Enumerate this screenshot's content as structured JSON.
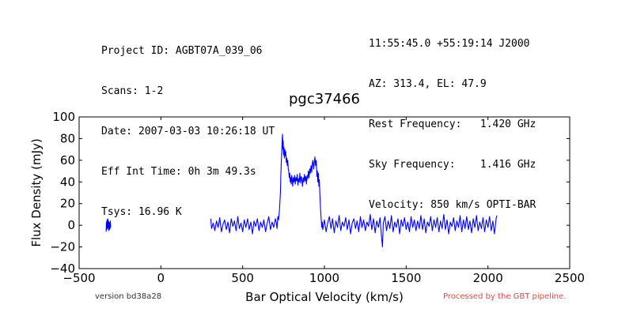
{
  "header": {
    "left": [
      "Project ID: AGBT07A_039_06",
      "Scans: 1-2",
      "Date: 2007-03-03 10:26:18 UT",
      "Eff Int Time: 0h 3m 49.3s",
      "Tsys: 16.96 K"
    ],
    "right": [
      "11:55:45.0 +55:19:14 J2000",
      "AZ: 313.4, EL: 47.9",
      "Rest Frequency:   1.420 GHz",
      "Sky Frequency:    1.416 GHz",
      "Velocity: 850 km/s OPTI-BAR"
    ]
  },
  "footer": {
    "version": "version bd38a28",
    "pipeline": "Processed by the GBT pipeline."
  },
  "chart_data": {
    "type": "line",
    "title": "pgc37466",
    "xlabel": "Bar Optical Velocity (km/s)",
    "ylabel": "Flux Density (mJy)",
    "xlim": [
      -500,
      2500
    ],
    "ylim": [
      -40,
      100
    ],
    "xticks": [
      -500,
      0,
      500,
      1000,
      1500,
      2000,
      2500
    ],
    "yticks": [
      -40,
      -20,
      0,
      20,
      40,
      60,
      80,
      100
    ],
    "grid": false,
    "line_color": "#0000ff",
    "series": [
      {
        "segments": [
          [
            [
              -335,
              -6
            ],
            [
              -333,
              3
            ],
            [
              -331,
              -4
            ],
            [
              -329,
              5
            ],
            [
              -327,
              -3
            ],
            [
              -325,
              6
            ],
            [
              -323,
              -2
            ],
            [
              -321,
              4
            ],
            [
              -319,
              -5
            ],
            [
              -317,
              3
            ],
            [
              -315,
              -4
            ],
            [
              -313,
              2
            ],
            [
              -311,
              -3
            ],
            [
              -309,
              4
            ],
            [
              -307,
              -2
            ]
          ],
          [
            [
              305,
              6
            ],
            [
              310,
              -3
            ],
            [
              320,
              2
            ],
            [
              330,
              -5
            ],
            [
              340,
              4
            ],
            [
              350,
              -2
            ],
            [
              360,
              7
            ],
            [
              370,
              -6
            ],
            [
              380,
              1
            ],
            [
              390,
              5
            ],
            [
              400,
              -4
            ],
            [
              410,
              3
            ],
            [
              420,
              -7
            ],
            [
              430,
              6
            ],
            [
              440,
              -1
            ],
            [
              450,
              4
            ],
            [
              460,
              -5
            ],
            [
              470,
              8
            ],
            [
              480,
              -3
            ],
            [
              490,
              2
            ],
            [
              500,
              -6
            ],
            [
              510,
              5
            ],
            [
              520,
              -2
            ],
            [
              530,
              6
            ],
            [
              540,
              -4
            ],
            [
              550,
              3
            ],
            [
              560,
              -8
            ],
            [
              570,
              4
            ],
            [
              580,
              -1
            ],
            [
              590,
              6
            ],
            [
              600,
              -5
            ],
            [
              610,
              3
            ],
            [
              620,
              -2
            ],
            [
              630,
              5
            ],
            [
              640,
              -6
            ],
            [
              650,
              2
            ],
            [
              660,
              8
            ],
            [
              670,
              -4
            ],
            [
              680,
              3
            ],
            [
              690,
              -2
            ],
            [
              700,
              6
            ],
            [
              705,
              3
            ],
            [
              710,
              -3
            ],
            [
              715,
              8
            ],
            [
              720,
              5
            ],
            [
              725,
              14
            ],
            [
              728,
              22
            ],
            [
              731,
              30
            ],
            [
              734,
              48
            ],
            [
              737,
              60
            ],
            [
              740,
              72
            ],
            [
              742,
              80
            ],
            [
              744,
              84
            ],
            [
              746,
              70
            ],
            [
              748,
              78
            ],
            [
              750,
              65
            ],
            [
              752,
              72
            ],
            [
              755,
              62
            ],
            [
              758,
              70
            ],
            [
              761,
              64
            ],
            [
              764,
              68
            ],
            [
              767,
              58
            ],
            [
              770,
              62
            ],
            [
              773,
              55
            ],
            [
              776,
              60
            ],
            [
              779,
              52
            ],
            [
              782,
              50
            ],
            [
              785,
              44
            ],
            [
              788,
              48
            ],
            [
              791,
              40
            ],
            [
              794,
              44
            ],
            [
              797,
              38
            ],
            [
              800,
              46
            ],
            [
              803,
              42
            ],
            [
              806,
              36
            ],
            [
              810,
              44
            ],
            [
              814,
              40
            ],
            [
              818,
              46
            ],
            [
              822,
              38
            ],
            [
              826,
              44
            ],
            [
              830,
              41
            ],
            [
              834,
              47
            ],
            [
              838,
              37
            ],
            [
              842,
              43
            ],
            [
              846,
              40
            ],
            [
              850,
              48
            ],
            [
              854,
              39
            ],
            [
              858,
              45
            ],
            [
              862,
              42
            ],
            [
              866,
              36
            ],
            [
              870,
              44
            ],
            [
              874,
              40
            ],
            [
              878,
              47
            ],
            [
              882,
              41
            ],
            [
              886,
              45
            ],
            [
              890,
              38
            ],
            [
              894,
              46
            ],
            [
              898,
              43
            ],
            [
              902,
              50
            ],
            [
              906,
              44
            ],
            [
              910,
              52
            ],
            [
              914,
              48
            ],
            [
              918,
              55
            ],
            [
              922,
              49
            ],
            [
              926,
              57
            ],
            [
              930,
              60
            ],
            [
              934,
              52
            ],
            [
              938,
              58
            ],
            [
              942,
              63
            ],
            [
              946,
              55
            ],
            [
              950,
              60
            ],
            [
              954,
              45
            ],
            [
              957,
              50
            ],
            [
              960,
              40
            ],
            [
              963,
              48
            ],
            [
              966,
              36
            ],
            [
              969,
              42
            ],
            [
              972,
              30
            ],
            [
              975,
              20
            ],
            [
              978,
              10
            ],
            [
              981,
              4
            ],
            [
              984,
              -2
            ],
            [
              987,
              3
            ],
            [
              990,
              -4
            ],
            [
              1000,
              5
            ],
            [
              1010,
              -6
            ],
            [
              1020,
              2
            ],
            [
              1030,
              8
            ],
            [
              1040,
              -3
            ],
            [
              1050,
              6
            ],
            [
              1060,
              -7
            ],
            [
              1070,
              4
            ],
            [
              1080,
              -2
            ],
            [
              1090,
              9
            ],
            [
              1100,
              -5
            ],
            [
              1110,
              3
            ],
            [
              1120,
              -1
            ],
            [
              1130,
              7
            ],
            [
              1140,
              -4
            ],
            [
              1150,
              5
            ],
            [
              1160,
              -8
            ],
            [
              1170,
              2
            ],
            [
              1180,
              6
            ],
            [
              1190,
              -3
            ],
            [
              1200,
              4
            ],
            [
              1210,
              -6
            ],
            [
              1220,
              8
            ],
            [
              1230,
              -2
            ],
            [
              1240,
              5
            ],
            [
              1250,
              -5
            ],
            [
              1260,
              3
            ],
            [
              1270,
              -1
            ],
            [
              1280,
              10
            ],
            [
              1290,
              -4
            ],
            [
              1300,
              6
            ],
            [
              1310,
              -7
            ],
            [
              1320,
              4
            ],
            [
              1330,
              -2
            ],
            [
              1340,
              7
            ],
            [
              1350,
              -12
            ],
            [
              1355,
              -20
            ],
            [
              1360,
              2
            ],
            [
              1370,
              8
            ],
            [
              1380,
              -5
            ],
            [
              1390,
              4
            ],
            [
              1400,
              -3
            ],
            [
              1410,
              9
            ],
            [
              1420,
              -6
            ],
            [
              1430,
              3
            ],
            [
              1440,
              -2
            ],
            [
              1450,
              6
            ],
            [
              1460,
              -8
            ],
            [
              1470,
              5
            ],
            [
              1480,
              -1
            ],
            [
              1490,
              7
            ],
            [
              1500,
              -4
            ],
            [
              1510,
              3
            ],
            [
              1520,
              -6
            ],
            [
              1530,
              8
            ],
            [
              1540,
              -2
            ],
            [
              1550,
              5
            ],
            [
              1560,
              -5
            ],
            [
              1570,
              4
            ],
            [
              1580,
              -3
            ],
            [
              1590,
              9
            ],
            [
              1600,
              -4
            ],
            [
              1610,
              6
            ],
            [
              1620,
              -7
            ],
            [
              1630,
              3
            ],
            [
              1640,
              -1
            ],
            [
              1650,
              8
            ],
            [
              1660,
              -5
            ],
            [
              1670,
              5
            ],
            [
              1680,
              -2
            ],
            [
              1690,
              7
            ],
            [
              1700,
              -6
            ],
            [
              1710,
              4
            ],
            [
              1720,
              -3
            ],
            [
              1730,
              10
            ],
            [
              1740,
              -4
            ],
            [
              1750,
              5
            ],
            [
              1760,
              -8
            ],
            [
              1770,
              3
            ],
            [
              1780,
              -1
            ],
            [
              1790,
              7
            ],
            [
              1800,
              -5
            ],
            [
              1810,
              4
            ],
            [
              1820,
              -2
            ],
            [
              1830,
              9
            ],
            [
              1840,
              -6
            ],
            [
              1850,
              5
            ],
            [
              1860,
              -3
            ],
            [
              1870,
              8
            ],
            [
              1880,
              -4
            ],
            [
              1890,
              4
            ],
            [
              1900,
              -7
            ],
            [
              1910,
              6
            ],
            [
              1920,
              -2
            ],
            [
              1930,
              9
            ],
            [
              1940,
              -5
            ],
            [
              1950,
              3
            ],
            [
              1960,
              -3
            ],
            [
              1970,
              7
            ],
            [
              1980,
              -6
            ],
            [
              1990,
              5
            ],
            [
              2000,
              -2
            ],
            [
              2010,
              8
            ],
            [
              2020,
              -5
            ],
            [
              2030,
              4
            ],
            [
              2040,
              -8
            ],
            [
              2050,
              6
            ],
            [
              2055,
              9
            ]
          ]
        ]
      }
    ]
  }
}
